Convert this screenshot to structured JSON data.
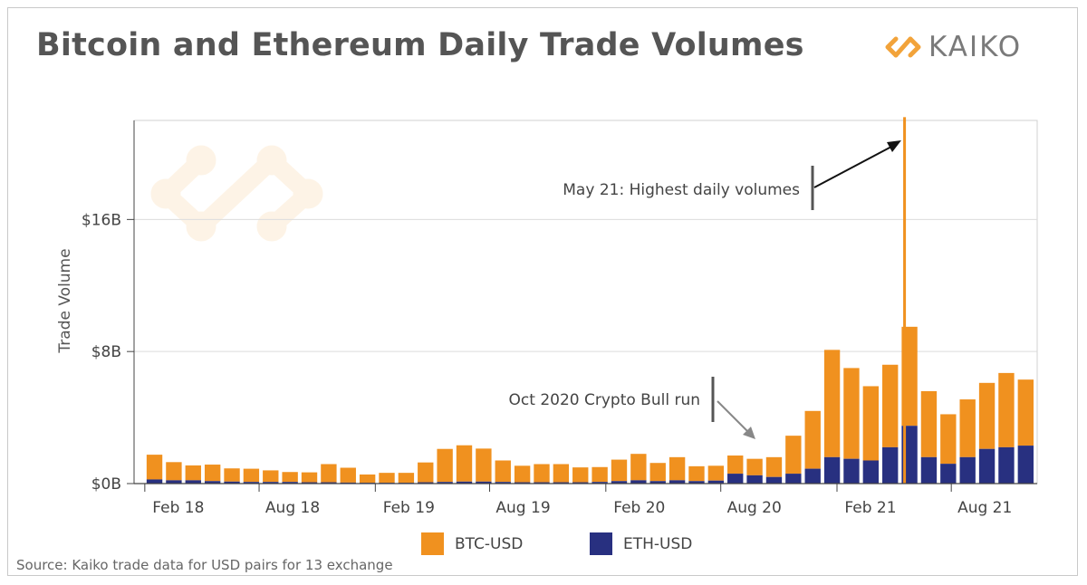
{
  "header": {
    "title": "Bitcoin and Ethereum Daily Trade Volumes",
    "brand": "KAIKO"
  },
  "footer": {
    "source": "Source: Kaiko trade data for USD pairs for 13 exchange"
  },
  "colors": {
    "btc": "#F0911F",
    "eth": "#283080",
    "brand_accent": "#F2A33A",
    "grid": "#dcdcdc",
    "axis_text": "#444444"
  },
  "chart_data": {
    "type": "bar",
    "stacked": true,
    "title": "Bitcoin and Ethereum Daily Trade Volumes",
    "xlabel": "",
    "ylabel": "Trade Volume",
    "ylim": [
      0,
      22
    ],
    "y_unit": "billion USD",
    "x_range": [
      "2018-01-15",
      "2021-12-15"
    ],
    "y_ticks": [
      {
        "value": 0,
        "label": "$0B"
      },
      {
        "value": 8,
        "label": "$8B"
      },
      {
        "value": 16,
        "label": "$16B"
      }
    ],
    "x_ticks": [
      {
        "date": "2018-02-01",
        "label": "Feb 18"
      },
      {
        "date": "2018-08-01",
        "label": "Aug 18"
      },
      {
        "date": "2019-02-01",
        "label": "Feb 19"
      },
      {
        "date": "2019-08-01",
        "label": "Aug 19"
      },
      {
        "date": "2020-02-01",
        "label": "Feb 20"
      },
      {
        "date": "2020-08-01",
        "label": "Aug 20"
      },
      {
        "date": "2021-02-01",
        "label": "Feb 21"
      },
      {
        "date": "2021-08-01",
        "label": "Aug 21"
      }
    ],
    "categories": [
      "Feb 18",
      "Mar 18",
      "Apr 18",
      "May 18",
      "Jun 18",
      "Jul 18",
      "Aug 18",
      "Sep 18",
      "Oct 18",
      "Nov 18",
      "Dec 18",
      "Jan 19",
      "Feb 19",
      "Mar 19",
      "Apr 19",
      "May 19",
      "Jun 19",
      "Jul 19",
      "Aug 19",
      "Sep 19",
      "Oct 19",
      "Nov 19",
      "Dec 19",
      "Jan 20",
      "Feb 20",
      "Mar 20",
      "Apr 20",
      "May 20",
      "Jun 20",
      "Jul 20",
      "Aug 20",
      "Sep 20",
      "Oct 20",
      "Nov 20",
      "Dec 20",
      "Jan 21",
      "Feb 21",
      "Mar 21",
      "Apr 21",
      "May 21",
      "Jun 21",
      "Jul 21",
      "Aug 21",
      "Sep 21",
      "Oct 21",
      "Nov 21"
    ],
    "series": [
      {
        "name": "BTC-USD",
        "values": [
          1.5,
          1.1,
          0.9,
          1.0,
          0.8,
          0.8,
          0.7,
          0.6,
          0.6,
          1.1,
          0.9,
          0.5,
          0.6,
          0.6,
          1.2,
          2.0,
          2.2,
          2.0,
          1.3,
          1.0,
          1.1,
          1.1,
          0.9,
          0.9,
          1.3,
          1.6,
          1.1,
          1.4,
          0.9,
          0.9,
          1.1,
          1.0,
          1.2,
          2.3,
          3.5,
          6.5,
          5.5,
          4.5,
          5.0,
          6.0,
          4.0,
          3.0,
          3.5,
          4.0,
          4.5,
          4.0
        ]
      },
      {
        "name": "ETH-USD",
        "values": [
          0.25,
          0.2,
          0.2,
          0.15,
          0.12,
          0.1,
          0.1,
          0.1,
          0.08,
          0.08,
          0.06,
          0.05,
          0.05,
          0.05,
          0.08,
          0.1,
          0.12,
          0.12,
          0.1,
          0.08,
          0.08,
          0.08,
          0.08,
          0.1,
          0.15,
          0.2,
          0.15,
          0.2,
          0.15,
          0.18,
          0.6,
          0.5,
          0.4,
          0.6,
          0.9,
          1.6,
          1.5,
          1.4,
          2.2,
          3.5,
          1.6,
          1.2,
          1.6,
          2.1,
          2.2,
          2.3
        ]
      }
    ],
    "annotations": [
      {
        "text": "May 21: Highest daily volumes",
        "date": "2021-05-19",
        "value": 22.2
      },
      {
        "text": "Oct 2020 Crypto Bull run",
        "date": "2020-10-15",
        "value": 2.4
      }
    ],
    "legend": "bottom-center"
  }
}
